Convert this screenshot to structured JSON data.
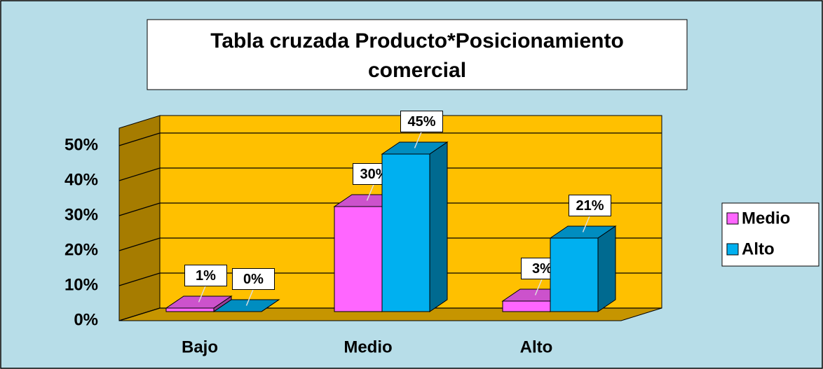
{
  "chart_data": {
    "type": "bar3d",
    "title": "Tabla cruzada Producto*Posicionamiento comercial",
    "categories": [
      "Bajo",
      "Medio",
      "Alto"
    ],
    "series": [
      {
        "name": "Medio",
        "color": "#ff66ff",
        "values": [
          1,
          30,
          3
        ],
        "value_labels": [
          "1%",
          "30%",
          "3%"
        ]
      },
      {
        "name": "Alto",
        "color": "#00b0f0",
        "values": [
          0,
          45,
          21
        ],
        "value_labels": [
          "0%",
          "45%",
          "21%"
        ]
      }
    ],
    "ylim": [
      0,
      55
    ],
    "yticks": [
      {
        "value": 0,
        "label": "0%"
      },
      {
        "value": 10,
        "label": "10%"
      },
      {
        "value": 20,
        "label": "20%"
      },
      {
        "value": 30,
        "label": "30%"
      },
      {
        "value": 40,
        "label": "40%"
      },
      {
        "value": 50,
        "label": "50%"
      }
    ],
    "grid": true,
    "legend": "right"
  }
}
